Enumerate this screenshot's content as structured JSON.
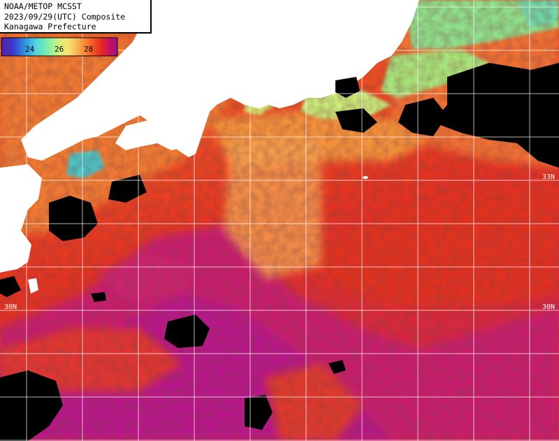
{
  "title": {
    "line1": "NOAA/METOP MCSST",
    "line2": "2023/09/29(UTC) Composite",
    "line3": "Kanagawa Prefecture"
  },
  "colorbar": {
    "ticks": [
      "24",
      "26",
      "28"
    ],
    "stops": [
      "#5a1fa0",
      "#3a3ad0",
      "#2f8fe0",
      "#4fd8e0",
      "#7ef0a8",
      "#d6f07a",
      "#f8e070",
      "#f8b050",
      "#f86a2a",
      "#e82a20",
      "#c0106a",
      "#a0108a"
    ]
  },
  "lat_labels": {
    "lat33_right": "33N",
    "lat30_left": "30N",
    "lat30_right": "30N"
  },
  "colors": {
    "land": "#ffffff",
    "cloud": "#000000",
    "warm_magenta": "#c41a78",
    "red": "#e8301c",
    "orange": "#f06a2a",
    "light_orange": "#f5a650",
    "green": "#7ed68a",
    "cyan": "#3ab8d8",
    "grid": "#ffffff"
  }
}
